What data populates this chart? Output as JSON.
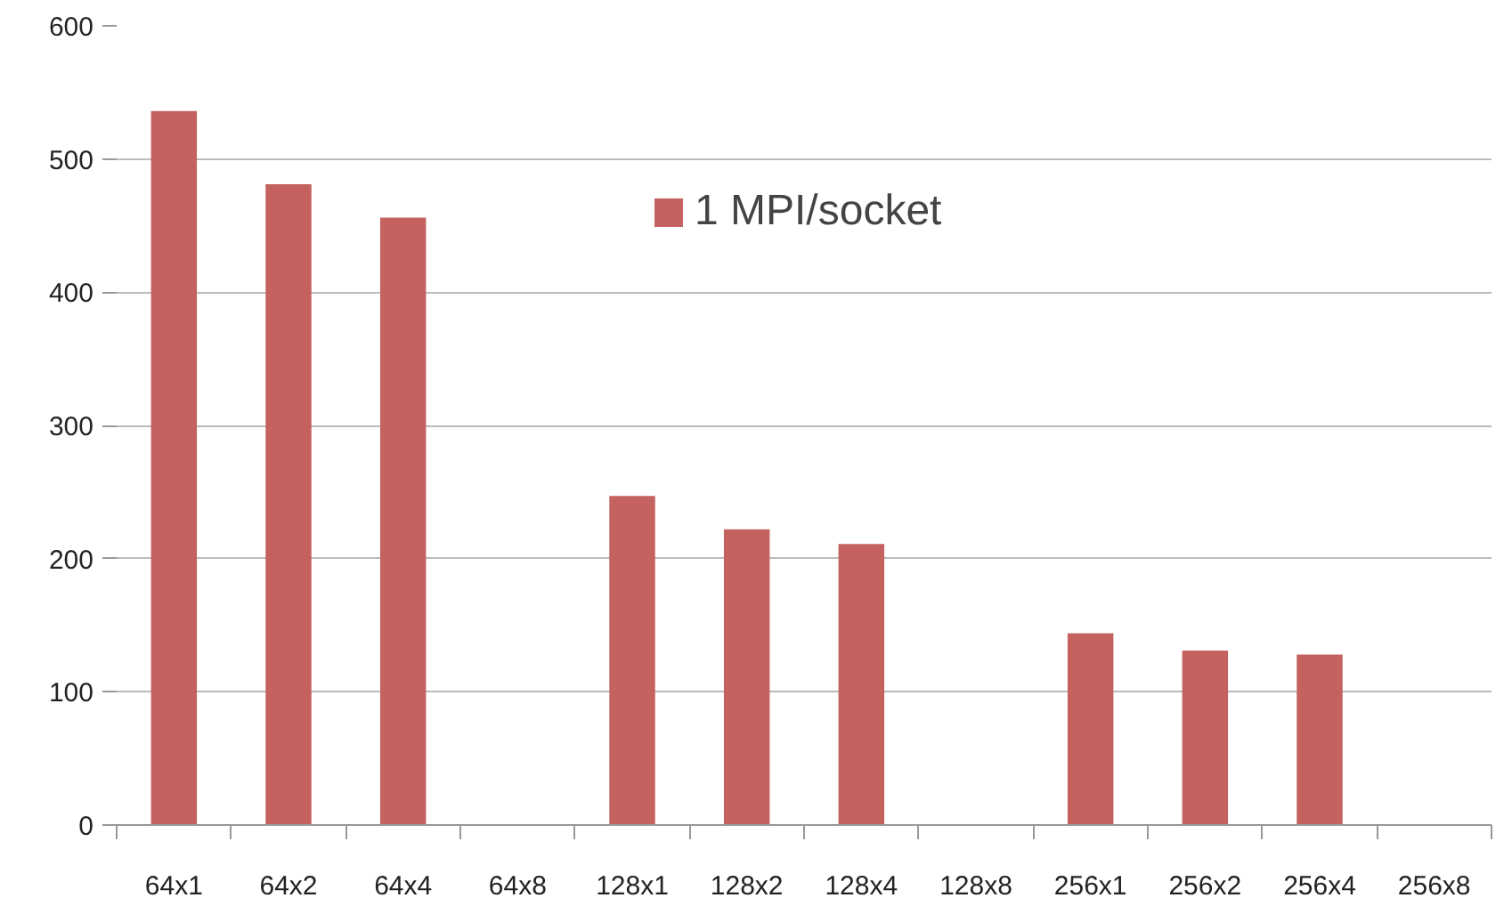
{
  "chart_data": {
    "type": "bar",
    "categories": [
      "64x1",
      "64x2",
      "64x4",
      "64x8",
      "128x1",
      "128x2",
      "128x4",
      "128x8",
      "256x1",
      "256x2",
      "256x4",
      "256x8"
    ],
    "series": [
      {
        "name": "1 MPI/socket",
        "color": "#c4625f",
        "values": [
          536,
          481,
          456,
          null,
          247,
          222,
          211,
          null,
          144,
          131,
          128,
          null
        ]
      }
    ],
    "ylim": [
      0,
      600
    ],
    "yticks": [
      0,
      100,
      200,
      300,
      400,
      500,
      600
    ],
    "grid": "y",
    "legend": "top"
  }
}
